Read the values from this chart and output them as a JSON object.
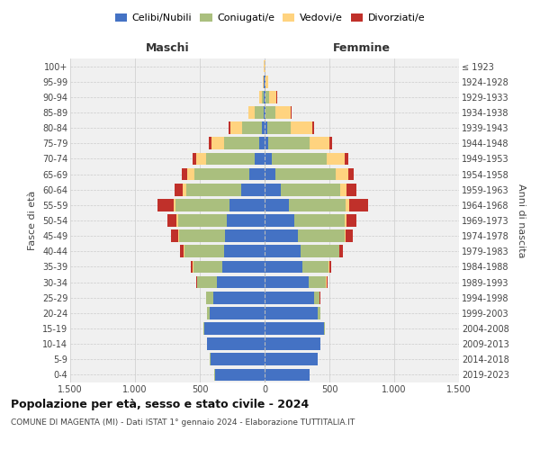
{
  "age_groups": [
    "0-4",
    "5-9",
    "10-14",
    "15-19",
    "20-24",
    "25-29",
    "30-34",
    "35-39",
    "40-44",
    "45-49",
    "50-54",
    "55-59",
    "60-64",
    "65-69",
    "70-74",
    "75-79",
    "80-84",
    "85-89",
    "90-94",
    "95-99",
    "100+"
  ],
  "birth_years": [
    "2019-2023",
    "2014-2018",
    "2009-2013",
    "2004-2008",
    "1999-2003",
    "1994-1998",
    "1989-1993",
    "1984-1988",
    "1979-1983",
    "1974-1978",
    "1969-1973",
    "1964-1968",
    "1959-1963",
    "1954-1958",
    "1949-1953",
    "1944-1948",
    "1939-1943",
    "1934-1938",
    "1929-1933",
    "1924-1928",
    "≤ 1923"
  ],
  "colors": {
    "celibi": "#4472C4",
    "coniugati": "#AABF7E",
    "vedovi": "#FFD37F",
    "divorziati": "#C0302A"
  },
  "maschi": {
    "celibi": [
      385,
      420,
      445,
      465,
      425,
      395,
      365,
      325,
      315,
      305,
      290,
      270,
      180,
      120,
      75,
      40,
      22,
      10,
      5,
      4,
      2
    ],
    "coniugati": [
      1,
      1,
      2,
      5,
      18,
      55,
      155,
      225,
      305,
      355,
      375,
      415,
      425,
      425,
      375,
      275,
      155,
      65,
      18,
      4,
      1
    ],
    "vedovi": [
      0,
      0,
      0,
      0,
      1,
      1,
      2,
      3,
      4,
      7,
      13,
      18,
      28,
      55,
      75,
      95,
      88,
      48,
      18,
      4,
      1
    ],
    "divorziati": [
      0,
      0,
      0,
      0,
      1,
      2,
      7,
      14,
      28,
      52,
      75,
      125,
      58,
      38,
      28,
      18,
      10,
      5,
      2,
      1,
      0
    ]
  },
  "femmine": {
    "celibi": [
      350,
      410,
      430,
      460,
      410,
      380,
      340,
      290,
      280,
      260,
      230,
      190,
      125,
      85,
      55,
      30,
      18,
      10,
      7,
      4,
      2
    ],
    "coniugati": [
      0,
      1,
      2,
      5,
      18,
      45,
      135,
      205,
      295,
      355,
      385,
      435,
      455,
      465,
      425,
      315,
      185,
      75,
      28,
      4,
      1
    ],
    "vedovi": [
      0,
      0,
      0,
      0,
      0,
      1,
      2,
      3,
      4,
      9,
      18,
      30,
      55,
      95,
      135,
      155,
      165,
      115,
      58,
      18,
      5
    ],
    "divorziati": [
      0,
      0,
      0,
      0,
      1,
      2,
      7,
      14,
      28,
      55,
      75,
      145,
      75,
      42,
      32,
      22,
      14,
      5,
      2,
      1,
      0
    ]
  },
  "title": "Popolazione per età, sesso e stato civile - 2024",
  "subtitle": "COMUNE DI MAGENTA (MI) - Dati ISTAT 1° gennaio 2024 - Elaborazione TUTTITALIA.IT",
  "label_maschi": "Maschi",
  "label_femmine": "Femmine",
  "ylabel_left": "Fasce di età",
  "ylabel_right": "Anni di nascita",
  "legend_labels": [
    "Celibi/Nubili",
    "Coniugati/e",
    "Vedovi/e",
    "Divorziati/e"
  ],
  "xlim": 1500,
  "bg_color": "#FFFFFF",
  "plot_bg": "#F0F0F0",
  "grid_color": "#CCCCCC"
}
